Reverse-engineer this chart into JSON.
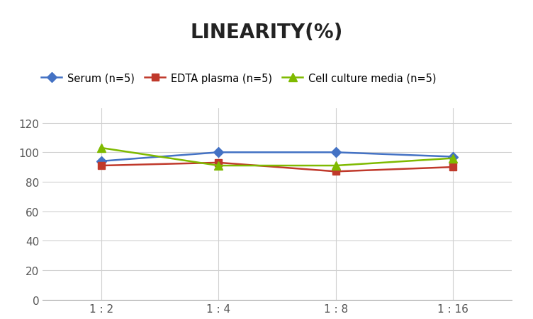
{
  "title": "LINEARITY(%)",
  "x_labels": [
    "1 : 2",
    "1 : 4",
    "1 : 8",
    "1 : 16"
  ],
  "x_positions": [
    0,
    1,
    2,
    3
  ],
  "series": [
    {
      "label": "Serum (n=5)",
      "values": [
        94,
        100,
        100,
        97
      ],
      "color": "#4472C4",
      "marker": "D",
      "markersize": 7,
      "linewidth": 1.8
    },
    {
      "label": "EDTA plasma (n=5)",
      "values": [
        91,
        93,
        87,
        90
      ],
      "color": "#C0392B",
      "marker": "s",
      "markersize": 7,
      "linewidth": 1.8
    },
    {
      "label": "Cell culture media (n=5)",
      "values": [
        103,
        91,
        91,
        96
      ],
      "color": "#7FBA00",
      "marker": "^",
      "markersize": 9,
      "linewidth": 1.8
    }
  ],
  "ylim": [
    0,
    130
  ],
  "yticks": [
    0,
    20,
    40,
    60,
    80,
    100,
    120
  ],
  "title_fontsize": 20,
  "title_fontweight": "bold",
  "legend_fontsize": 10.5,
  "tick_fontsize": 11,
  "background_color": "#ffffff",
  "grid_color": "#d0d0d0",
  "vgrid": true
}
